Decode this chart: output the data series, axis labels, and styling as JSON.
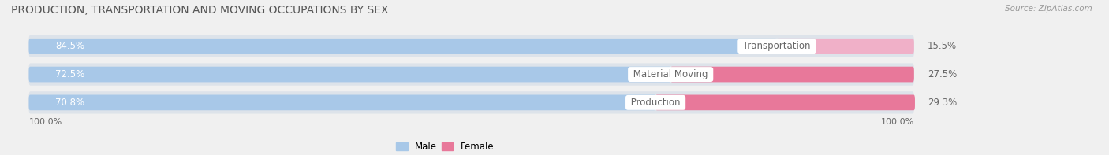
{
  "title": "PRODUCTION, TRANSPORTATION AND MOVING OCCUPATIONS BY SEX",
  "source": "Source: ZipAtlas.com",
  "categories": [
    "Transportation",
    "Material Moving",
    "Production"
  ],
  "male_values": [
    84.5,
    72.5,
    70.8
  ],
  "female_values": [
    15.5,
    27.5,
    29.3
  ],
  "male_color": "#a8c8e8",
  "female_color": "#e8789a",
  "female_light": "#f0b0c8",
  "bar_bg_color": "#dde3ea",
  "label_color_male": "#ffffff",
  "category_label_color": "#666666",
  "title_fontsize": 10,
  "source_fontsize": 7.5,
  "bar_label_fontsize": 8.5,
  "category_fontsize": 8.5,
  "legend_fontsize": 8.5,
  "axis_label_fontsize": 8,
  "background_color": "#f0f0f0"
}
